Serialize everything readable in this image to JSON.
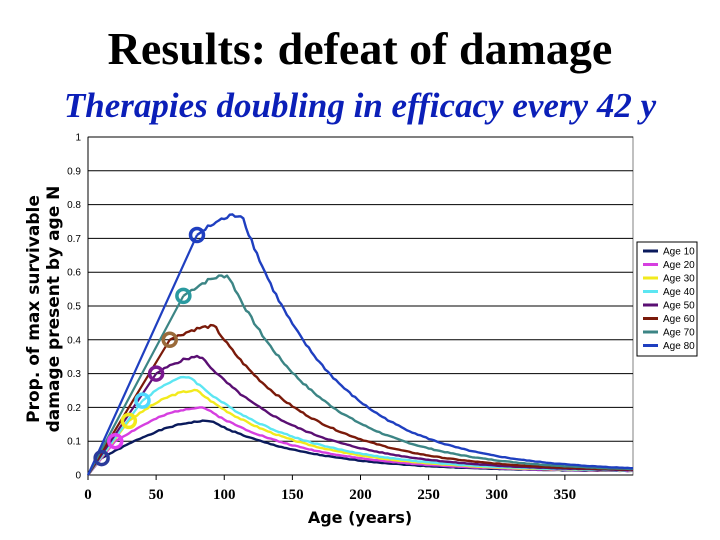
{
  "title": "Results: defeat of damage",
  "subtitle": "Therapies doubling in efficacy every 42 y",
  "chart_data": {
    "type": "line",
    "xlabel": "Age (years)",
    "ylabel_line1": "Prop. of max survivable",
    "ylabel_line2": "damage present by age N",
    "xlim": [
      0,
      400
    ],
    "ylim": [
      0,
      1
    ],
    "x_ticks": [
      "0",
      "50",
      "100",
      "150",
      "200",
      "250",
      "300",
      "350"
    ],
    "x_tick_values": [
      0,
      50,
      100,
      150,
      200,
      250,
      300,
      350
    ],
    "y_ticks": [
      "0",
      "0.1",
      "0.2",
      "0.3",
      "0.4",
      "0.5",
      "0.6",
      "0.7",
      "0.8",
      "0.9",
      "1"
    ],
    "y_tick_values": [
      0,
      0.1,
      0.2,
      0.3,
      0.4,
      0.5,
      0.6,
      0.7,
      0.8,
      0.9,
      1.0
    ],
    "grid": true,
    "legend_position": "right",
    "series": [
      {
        "name": "Age 10",
        "color": "#0a1a5c",
        "start": [
          10,
          0.05
        ],
        "peak": [
          90,
          0.16
        ],
        "end": 0.01
      },
      {
        "name": "Age 20",
        "color": "#d63fe0",
        "start": [
          20,
          0.1
        ],
        "peak": [
          85,
          0.2
        ],
        "end": 0.01
      },
      {
        "name": "Age 30",
        "color": "#f2ea1c",
        "start": [
          30,
          0.16
        ],
        "peak": [
          80,
          0.25
        ],
        "end": 0.01
      },
      {
        "name": "Age 40",
        "color": "#5ce6f2",
        "start": [
          40,
          0.22
        ],
        "peak": [
          75,
          0.29
        ],
        "end": 0.01
      },
      {
        "name": "Age 50",
        "color": "#5a0f73",
        "start": [
          50,
          0.3
        ],
        "peak": [
          83,
          0.35
        ],
        "end": 0.01
      },
      {
        "name": "Age 60",
        "color": "#7a1a0a",
        "start": [
          60,
          0.4
        ],
        "peak": [
          93,
          0.44
        ],
        "end": 0.01
      },
      {
        "name": "Age 70",
        "color": "#3c8585",
        "start": [
          70,
          0.53
        ],
        "peak": [
          103,
          0.59
        ],
        "end": 0.01
      },
      {
        "name": "Age 80",
        "color": "#1f3fc0",
        "start": [
          80,
          0.71
        ],
        "peak": [
          113,
          0.77
        ],
        "end": 0.01
      }
    ],
    "markers": [
      {
        "x": 10,
        "y": 0.05,
        "color": "#2a3a9a"
      },
      {
        "x": 20,
        "y": 0.1,
        "color": "#e040f0"
      },
      {
        "x": 30,
        "y": 0.16,
        "color": "#f2ea1c"
      },
      {
        "x": 40,
        "y": 0.22,
        "color": "#4fd8ff"
      },
      {
        "x": 50,
        "y": 0.3,
        "color": "#7a1890"
      },
      {
        "x": 60,
        "y": 0.4,
        "color": "#9a6a3a"
      },
      {
        "x": 70,
        "y": 0.53,
        "color": "#2a9aa0"
      },
      {
        "x": 80,
        "y": 0.71,
        "color": "#1f3fc0"
      }
    ]
  }
}
